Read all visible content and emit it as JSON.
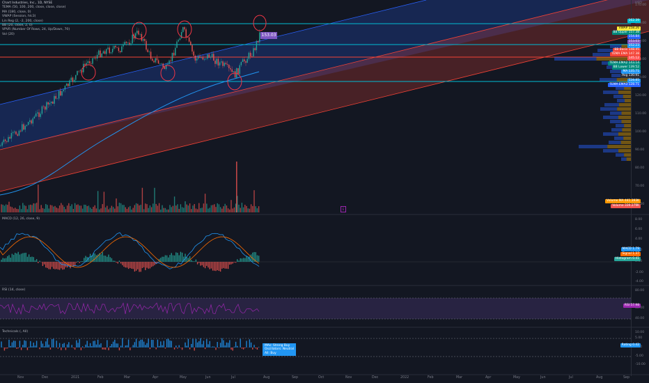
{
  "legend_main": {
    "title": "Chart Industries, Inc., 1D, NYSE",
    "lines": [
      "TEMA (50, 100, 200, close, close, close)",
      "MA (180, close, 0)",
      "VWAP (Session, hlc3)",
      "Lin Reg (2, -2, 200, close)",
      "BB (20, close, 2, 0)",
      "VPVR (Number Of Rows, 24, Up/Down, 70)",
      "Vol (20)"
    ]
  },
  "legend_macd": "MACD (12, 26, close, 9)",
  "legend_rsi": "RSI (14, close)",
  "legend_tech": "Technicals (, All)",
  "currency": "USD",
  "price_box": "153.03",
  "price_labels": [
    {
      "text": "162.39",
      "bg": "#00bcd4",
      "price": 162.4
    },
    {
      "text": "VWAP 158.26",
      "bg": "#ffeb3b",
      "fg": "#000",
      "price": 158.3
    },
    {
      "text": "BB Upper 157.38",
      "bg": "#00897b",
      "price": 157.4
    },
    {
      "text": "154.84",
      "bg": "#2962ff",
      "price": 154.9
    },
    {
      "text": "153.03",
      "bg": "#7e57c2",
      "price": 153.0
    },
    {
      "text": "152.23",
      "bg": "#2196f3",
      "price": 151.6
    },
    {
      "text": "BB Basis 148.45",
      "bg": "#f44336",
      "price": 148.5
    },
    {
      "text": "TEMA EMA 147.38",
      "bg": "#f44336",
      "price": 147.4
    },
    {
      "text": "145.12",
      "bg": "#ff5252",
      "price": 145.1
    },
    {
      "text": "TEMA EMA2 143.14",
      "bg": "#00897b",
      "price": 143.1
    },
    {
      "text": "BB Lower 139.52",
      "bg": "#00897b",
      "price": 139.5
    },
    {
      "text": "MA 135.71",
      "bg": "#2196f3",
      "price": 135.7
    },
    {
      "text": "Avg 130.91",
      "bg": "#2a2e39",
      "price": 132.6
    },
    {
      "text": "128.85",
      "bg": "#2196f3",
      "price": 129.5
    },
    {
      "text": "TEMA EMA3 128.71",
      "bg": "#2962ff",
      "price": 128.7
    }
  ],
  "price_ticks": [
    "170.00",
    "160.00",
    "150.00",
    "140.00",
    "130.00",
    "120.00",
    "110.00",
    "100.00",
    "90.00",
    "80.00",
    "70.00",
    "60.00"
  ],
  "volume_labels": [
    {
      "text": "Volume MA 441.393K",
      "bg": "#ff9800"
    },
    {
      "text": "Volume 339.279K",
      "bg": "#ef5350"
    }
  ],
  "macd_labels": [
    {
      "text": "MACD 1.79",
      "bg": "#2196f3"
    },
    {
      "text": "Signal 1.37",
      "bg": "#ff6d00"
    },
    {
      "text": "Histogram 0.41",
      "bg": "#26a69a"
    }
  ],
  "macd_ticks": [
    "8.00",
    "6.00",
    "4.00",
    "2.00",
    "0.00",
    "-2.00",
    "-4.00"
  ],
  "rsi_label": {
    "text": "RSI 57.98",
    "bg": "#9c27b0"
  },
  "rsi_ticks": [
    "80.00",
    "60.00",
    "40.00"
  ],
  "tech_label": {
    "text": "Rating 0.42",
    "bg": "#2196f3"
  },
  "tech_ticks": [
    "10.00",
    "5.00",
    "0.00",
    "-5.00",
    "-10.00"
  ],
  "summary_table": [
    "MAs: Strong Buy",
    "Oscillators: Neutral",
    "All: Buy"
  ],
  "marker_text": "E",
  "x_ticks": [
    "Nov",
    "Dec",
    "2021",
    "Feb",
    "Mar",
    "Apr",
    "May",
    "Jun",
    "Jul",
    "Aug",
    "Sep",
    "Oct",
    "Nov",
    "Dec",
    "2022",
    "Feb",
    "Mar",
    "Apr",
    "May",
    "Jun",
    "Jul",
    "Aug",
    "Sep"
  ],
  "colors": {
    "bg": "#131722",
    "up": "#26a69a",
    "down": "#ef5350",
    "channel_upper": "#2962ff",
    "channel_lower": "#f44336",
    "hline": "#00bcd4",
    "rline": "#f44336"
  }
}
